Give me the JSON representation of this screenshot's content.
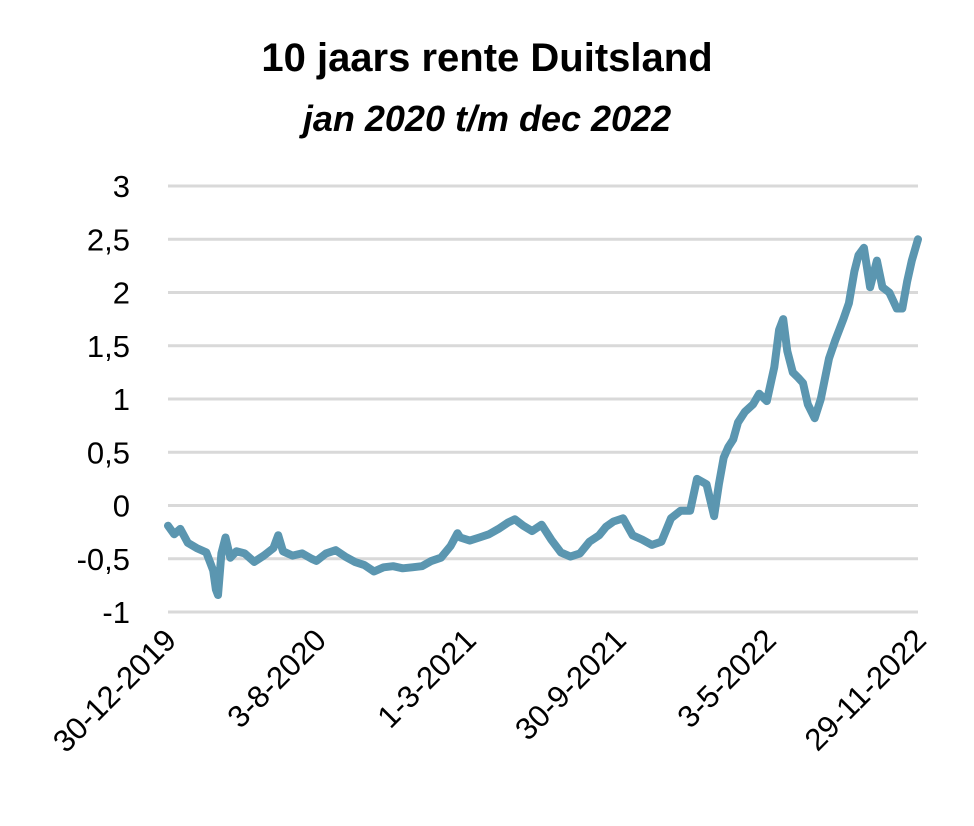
{
  "chart_data": {
    "type": "line",
    "title": "10 jaars rente Duitsland",
    "subtitle": "jan 2020 t/m dec 2022",
    "xlabel": "",
    "ylabel": "",
    "ylim": [
      -1,
      3
    ],
    "yticks": [
      "3",
      "2,5",
      "2",
      "1,5",
      "1",
      "0,5",
      "0",
      "-0,5",
      "-1"
    ],
    "xticks": [
      "30-12-2019",
      "3-8-2020",
      "1-3-2021",
      "30-9-2021",
      "3-5-2022",
      "29-11-2022"
    ],
    "grid": true,
    "line_color": "#5b96b0",
    "series": [
      {
        "x": [
          "2019-12-30",
          "2020-01-08",
          "2020-01-17",
          "2020-01-28",
          "2020-02-10",
          "2020-02-24",
          "2020-03-05",
          "2020-03-09",
          "2020-03-12",
          "2020-03-17",
          "2020-03-23",
          "2020-03-30",
          "2020-04-08",
          "2020-04-20",
          "2020-05-04",
          "2020-05-18",
          "2020-06-01",
          "2020-06-08",
          "2020-06-15",
          "2020-06-29",
          "2020-07-13",
          "2020-07-27",
          "2020-08-03",
          "2020-08-17",
          "2020-08-31",
          "2020-09-14",
          "2020-09-28",
          "2020-10-12",
          "2020-10-26",
          "2020-11-09",
          "2020-11-23",
          "2020-12-07",
          "2020-12-21",
          "2021-01-04",
          "2021-01-18",
          "2021-02-01",
          "2021-02-15",
          "2021-02-25",
          "2021-03-01",
          "2021-03-15",
          "2021-03-29",
          "2021-04-12",
          "2021-04-26",
          "2021-05-10",
          "2021-05-20",
          "2021-06-01",
          "2021-06-14",
          "2021-06-28",
          "2021-07-12",
          "2021-07-26",
          "2021-08-09",
          "2021-08-23",
          "2021-09-06",
          "2021-09-20",
          "2021-09-30",
          "2021-10-11",
          "2021-10-25",
          "2021-11-08",
          "2021-11-22",
          "2021-12-06",
          "2021-12-20",
          "2022-01-03",
          "2022-01-17",
          "2022-01-31",
          "2022-02-10",
          "2022-02-24",
          "2022-03-07",
          "2022-03-14",
          "2022-03-21",
          "2022-03-28",
          "2022-04-04",
          "2022-04-11",
          "2022-04-21",
          "2022-05-03",
          "2022-05-12",
          "2022-05-23",
          "2022-06-03",
          "2022-06-10",
          "2022-06-16",
          "2022-06-22",
          "2022-06-30",
          "2022-07-08",
          "2022-07-15",
          "2022-07-22",
          "2022-08-01",
          "2022-08-10",
          "2022-08-22",
          "2022-08-31",
          "2022-09-12",
          "2022-09-20",
          "2022-09-28",
          "2022-10-04",
          "2022-10-12",
          "2022-10-21",
          "2022-10-31",
          "2022-11-08",
          "2022-11-18",
          "2022-11-29",
          "2022-12-07",
          "2022-12-14",
          "2022-12-21",
          "2022-12-30"
        ],
        "values": [
          -0.19,
          -0.27,
          -0.22,
          -0.35,
          -0.4,
          -0.44,
          -0.61,
          -0.79,
          -0.84,
          -0.45,
          -0.3,
          -0.49,
          -0.43,
          -0.45,
          -0.53,
          -0.47,
          -0.4,
          -0.28,
          -0.43,
          -0.47,
          -0.45,
          -0.5,
          -0.52,
          -0.45,
          -0.42,
          -0.48,
          -0.53,
          -0.56,
          -0.62,
          -0.58,
          -0.57,
          -0.59,
          -0.58,
          -0.57,
          -0.52,
          -0.49,
          -0.38,
          -0.26,
          -0.3,
          -0.33,
          -0.3,
          -0.27,
          -0.22,
          -0.16,
          -0.13,
          -0.19,
          -0.24,
          -0.18,
          -0.32,
          -0.44,
          -0.48,
          -0.45,
          -0.34,
          -0.28,
          -0.2,
          -0.15,
          -0.12,
          -0.28,
          -0.32,
          -0.37,
          -0.34,
          -0.12,
          -0.05,
          -0.05,
          0.25,
          0.2,
          -0.1,
          0.2,
          0.45,
          0.55,
          0.62,
          0.78,
          0.88,
          0.95,
          1.05,
          0.98,
          1.3,
          1.65,
          1.75,
          1.45,
          1.25,
          1.2,
          1.15,
          0.95,
          0.82,
          1.0,
          1.38,
          1.55,
          1.75,
          1.9,
          2.2,
          2.35,
          2.42,
          2.05,
          2.3,
          2.05,
          2.0,
          1.85,
          1.85,
          2.1,
          2.3,
          2.5
        ]
      }
    ]
  }
}
